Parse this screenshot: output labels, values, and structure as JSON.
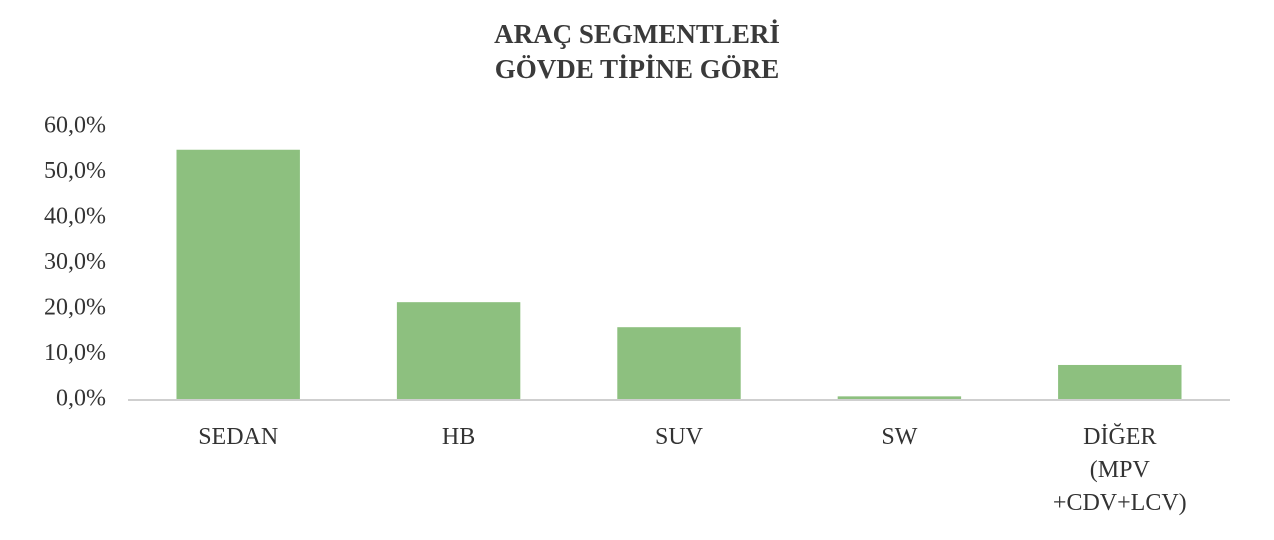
{
  "chart_data": {
    "type": "bar",
    "title": "ARAÇ SEGMENTLERİ",
    "subtitle": "GÖVDE TİPİNE GÖRE",
    "categories": [
      "SEDAN",
      "HB",
      "SUV",
      "SW",
      "DİĞER (MPV +CDV+LCV)"
    ],
    "values": [
      55,
      21.5,
      16,
      0.8,
      7.7
    ],
    "color": "#8dc07f",
    "ylim": [
      0,
      60
    ],
    "yticks": [
      {
        "value": 0,
        "label": "0,0%"
      },
      {
        "value": 10,
        "label": "10,0%"
      },
      {
        "value": 20,
        "label": "20,0%"
      },
      {
        "value": 30,
        "label": "30,0%"
      },
      {
        "value": 40,
        "label": "40,0%"
      },
      {
        "value": 50,
        "label": "50,0%"
      },
      {
        "value": 60,
        "label": "60,0%"
      }
    ],
    "grid": false
  }
}
